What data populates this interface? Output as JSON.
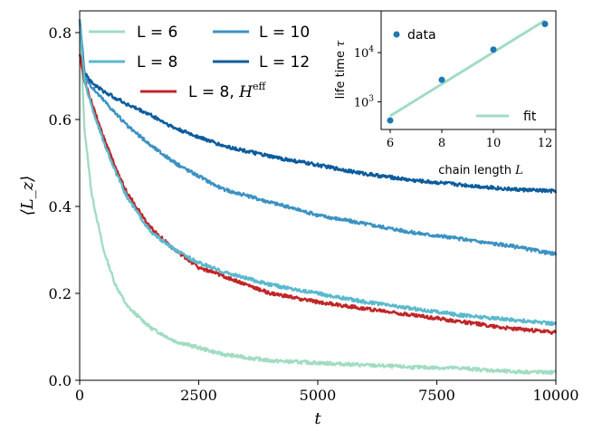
{
  "chart_data": [
    {
      "type": "line",
      "xlabel": "t",
      "ylabel": "⟨L_z⟩",
      "xlim": [
        0,
        10000
      ],
      "ylim": [
        0.0,
        0.85
      ],
      "xticks": [
        0,
        2500,
        5000,
        7500,
        10000
      ],
      "xtick_labels": [
        "0",
        "2500",
        "5000",
        "7500",
        "10000"
      ],
      "yticks": [
        0.0,
        0.2,
        0.4,
        0.6,
        0.8
      ],
      "ytick_labels": [
        "0.0",
        "0.2",
        "0.4",
        "0.6",
        "0.8"
      ],
      "legend_position": "top-left",
      "series": [
        {
          "name": "L = 6",
          "legend_label": "L = 6",
          "color": "#a1dcc2",
          "x": [
            0,
            100,
            250,
            500,
            750,
            1000,
            1500,
            2000,
            2500,
            3000,
            4000,
            5000,
            6000,
            7000,
            8000,
            9000,
            10000
          ],
          "y": [
            0.83,
            0.58,
            0.43,
            0.3,
            0.22,
            0.17,
            0.12,
            0.09,
            0.075,
            0.06,
            0.045,
            0.04,
            0.035,
            0.03,
            0.028,
            0.02,
            0.018
          ]
        },
        {
          "name": "L = 8",
          "legend_label": "L = 8",
          "color": "#5ab9cc",
          "x": [
            0,
            100,
            250,
            500,
            750,
            1000,
            1500,
            2000,
            2500,
            3000,
            4000,
            5000,
            6000,
            7000,
            8000,
            9000,
            10000
          ],
          "y": [
            0.83,
            0.69,
            0.63,
            0.55,
            0.48,
            0.42,
            0.34,
            0.3,
            0.27,
            0.25,
            0.22,
            0.2,
            0.18,
            0.165,
            0.15,
            0.14,
            0.13
          ]
        },
        {
          "name": "L = 10",
          "legend_label": "L = 10",
          "color": "#3b92c2",
          "x": [
            0,
            100,
            250,
            500,
            750,
            1000,
            1500,
            2000,
            2500,
            3000,
            4000,
            5000,
            6000,
            7000,
            8000,
            9000,
            10000
          ],
          "y": [
            0.83,
            0.7,
            0.675,
            0.645,
            0.615,
            0.585,
            0.54,
            0.5,
            0.47,
            0.44,
            0.41,
            0.38,
            0.36,
            0.34,
            0.325,
            0.31,
            0.29
          ]
        },
        {
          "name": "L = 12",
          "legend_label": "L = 12",
          "color": "#0c5c9c",
          "x": [
            0,
            100,
            250,
            500,
            750,
            1000,
            1500,
            2000,
            2500,
            3000,
            4000,
            5000,
            6000,
            7000,
            8000,
            9000,
            10000
          ],
          "y": [
            0.83,
            0.71,
            0.685,
            0.665,
            0.65,
            0.635,
            0.61,
            0.58,
            0.56,
            0.54,
            0.515,
            0.495,
            0.475,
            0.46,
            0.45,
            0.44,
            0.435
          ]
        },
        {
          "name": "L = 8, H^eff",
          "legend_label": "L = 8, ",
          "legend_math": "H",
          "legend_sup": "eff",
          "color": "#c02527",
          "x": [
            0,
            100,
            250,
            500,
            750,
            1000,
            1500,
            2000,
            2500,
            3000,
            4000,
            5000,
            6000,
            7000,
            8000,
            9000,
            10000
          ],
          "y": [
            0.75,
            0.69,
            0.64,
            0.56,
            0.49,
            0.43,
            0.35,
            0.3,
            0.26,
            0.24,
            0.2,
            0.18,
            0.165,
            0.15,
            0.135,
            0.12,
            0.11
          ]
        }
      ]
    },
    {
      "type": "scatter",
      "xlabel": "chain length",
      "xlabel_math": "L",
      "ylabel": "life time",
      "ylabel_math": "τ",
      "xlim": [
        6,
        12
      ],
      "ylim": [
        300,
        50000
      ],
      "yscale": "log",
      "xticks": [
        6,
        8,
        10,
        12
      ],
      "xtick_labels": [
        "6",
        "8",
        "10",
        "12"
      ],
      "yticks": [
        1000,
        10000
      ],
      "ytick_base": "10",
      "ytick_exps": [
        "3",
        "4"
      ],
      "series": [
        {
          "name": "data",
          "marker": "dot",
          "color": "#1f77b4",
          "x": [
            6,
            8,
            10,
            12
          ],
          "y": [
            420,
            2800,
            11500,
            38000
          ]
        },
        {
          "name": "fit",
          "marker": "line",
          "color": "#a1dcc2",
          "x": [
            6,
            12
          ],
          "y": [
            520,
            45000
          ]
        }
      ]
    }
  ]
}
